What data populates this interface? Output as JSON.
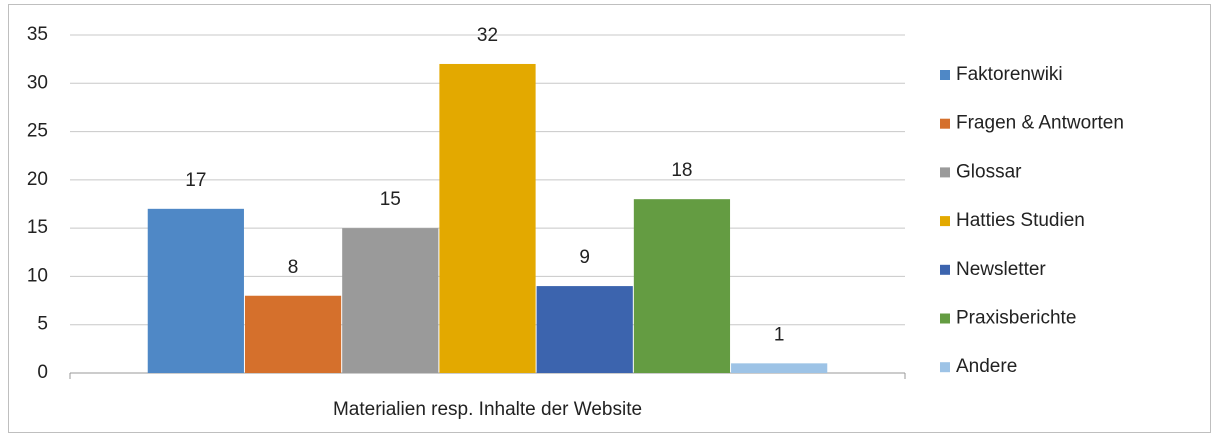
{
  "chart_data": {
    "type": "bar",
    "categories": [
      "Materialien resp. Inhalte der Website"
    ],
    "series": [
      {
        "name": "Faktorenwiki",
        "color": "#4f88c6",
        "values": [
          17
        ]
      },
      {
        "name": "Fragen & Antworten",
        "color": "#d5702c",
        "values": [
          8
        ]
      },
      {
        "name": "Glossar",
        "color": "#9a9a9a",
        "values": [
          15
        ]
      },
      {
        "name": "Hatties Studien",
        "color": "#e3a900",
        "values": [
          32
        ]
      },
      {
        "name": "Newsletter",
        "color": "#3c64ae",
        "values": [
          9
        ]
      },
      {
        "name": "Praxisberichte",
        "color": "#649c42",
        "values": [
          18
        ]
      },
      {
        "name": "Andere",
        "color": "#9dc3e6",
        "values": [
          1
        ]
      }
    ],
    "ylim": [
      0,
      35
    ],
    "yticks": [
      0,
      5,
      10,
      15,
      20,
      25,
      30,
      35
    ],
    "grid": true,
    "legend": "right"
  }
}
